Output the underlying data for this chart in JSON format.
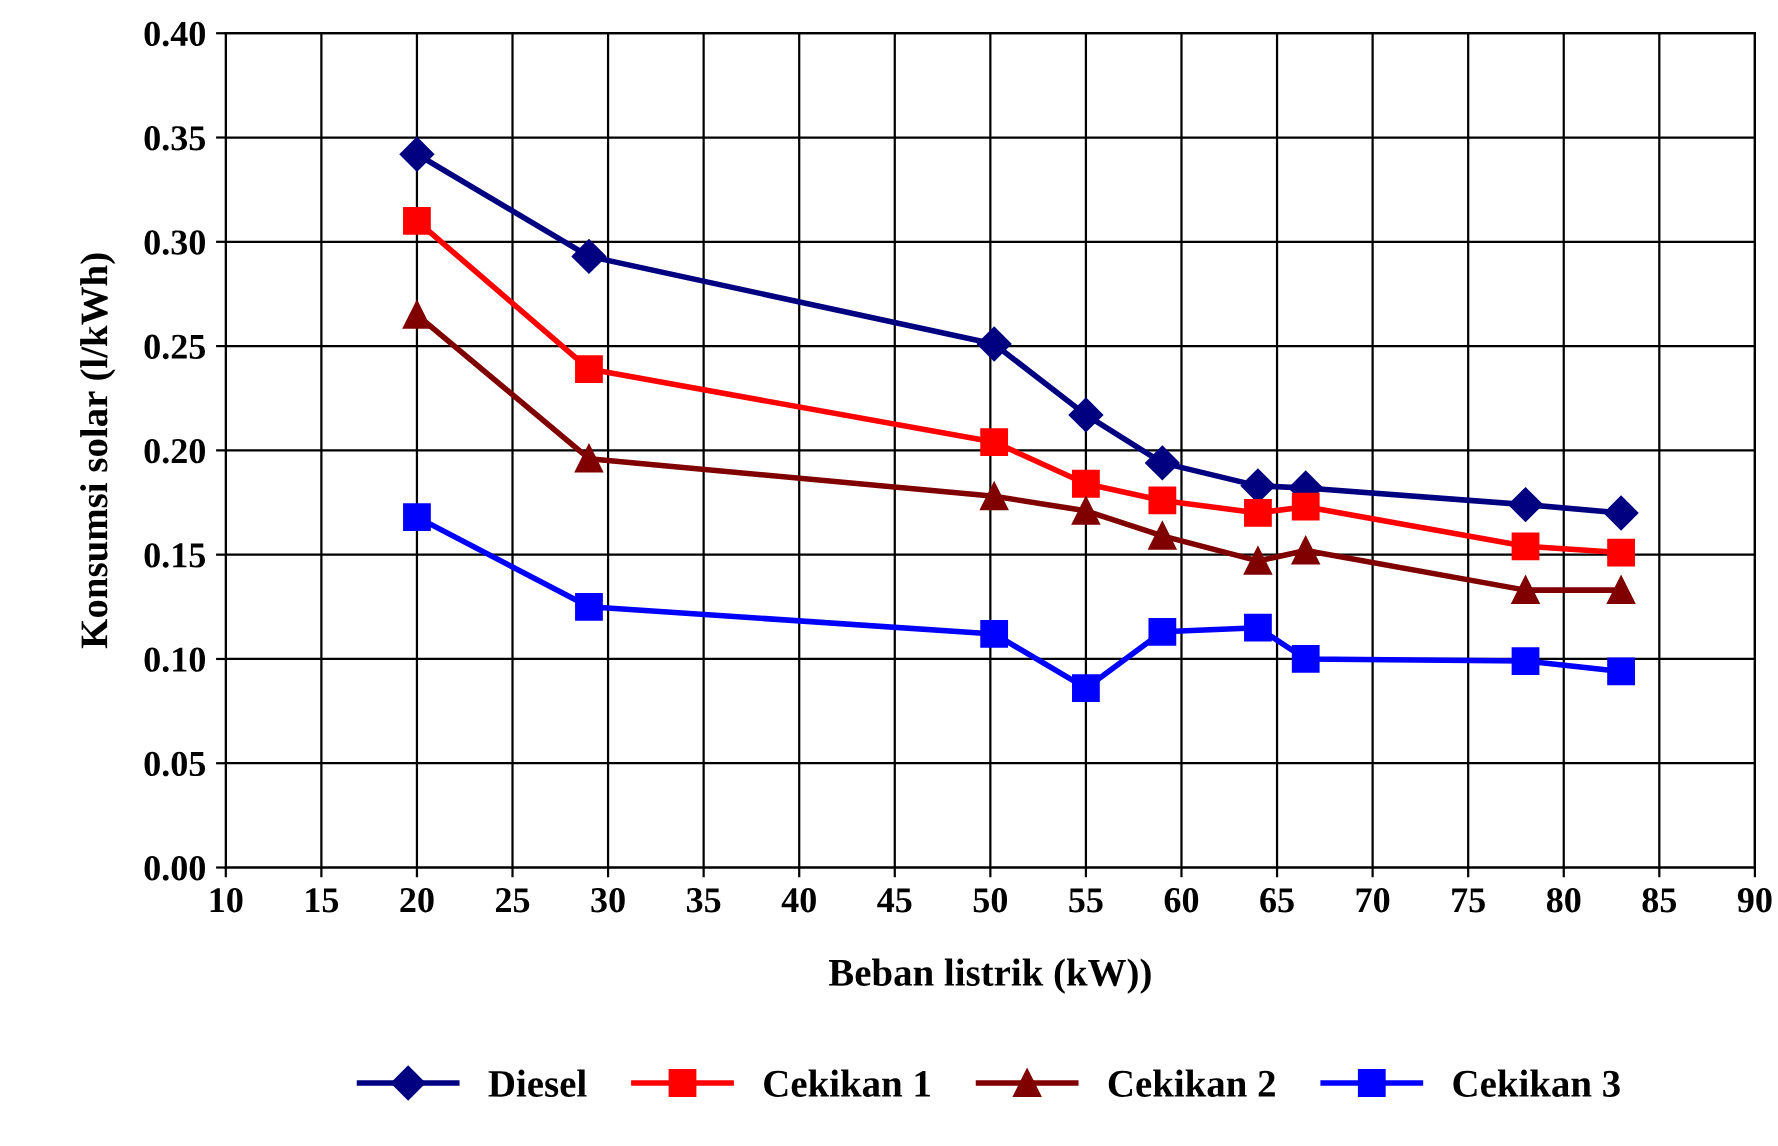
{
  "chart_data": {
    "type": "line",
    "xlabel": "Beban listrik (kW))",
    "ylabel": "Konsumsi solar (l/kWh)",
    "xlim": [
      10,
      90
    ],
    "xticks": [
      10,
      15,
      20,
      25,
      30,
      35,
      40,
      45,
      50,
      55,
      60,
      65,
      70,
      75,
      80,
      85,
      90
    ],
    "ylim": [
      0,
      0.4
    ],
    "yticks": [
      {
        "value": 0,
        "label": "0.00"
      },
      {
        "value": 0.05,
        "label": "0.05"
      },
      {
        "value": 0.1,
        "label": "0.10"
      },
      {
        "value": 0.15,
        "label": "0.15"
      },
      {
        "value": 0.2,
        "label": "0.20"
      },
      {
        "value": 0.25,
        "label": "0.25"
      },
      {
        "value": 0.3,
        "label": "0.30"
      },
      {
        "value": 0.35,
        "label": "0.35"
      },
      {
        "value": 0.4,
        "label": "0.40"
      }
    ],
    "grid": true,
    "legend": "bottom",
    "line_style": "solid",
    "x": [
      20,
      29,
      50.2,
      55,
      59,
      64,
      66.5,
      78,
      83
    ],
    "series": [
      {
        "name": "Diesel",
        "color": "#000080",
        "marker": "diamond",
        "values": [
          0.342,
          0.293,
          0.251,
          0.217,
          0.194,
          0.183,
          0.182,
          0.174,
          0.17
        ]
      },
      {
        "name": "Cekikan 1",
        "color": "#ff0000",
        "marker": "square",
        "values": [
          0.31,
          0.239,
          0.204,
          0.184,
          0.176,
          0.17,
          0.173,
          0.154,
          0.151
        ]
      },
      {
        "name": "Cekikan 2",
        "color": "#800000",
        "marker": "triangle",
        "values": [
          0.265,
          0.196,
          0.178,
          0.171,
          0.159,
          0.147,
          0.152,
          0.133,
          0.133
        ]
      },
      {
        "name": "Cekikan 3",
        "color": "#0000ff",
        "marker": "square",
        "values": [
          0.168,
          0.125,
          0.112,
          0.086,
          0.113,
          0.115,
          0.1,
          0.099,
          0.094
        ]
      }
    ]
  }
}
